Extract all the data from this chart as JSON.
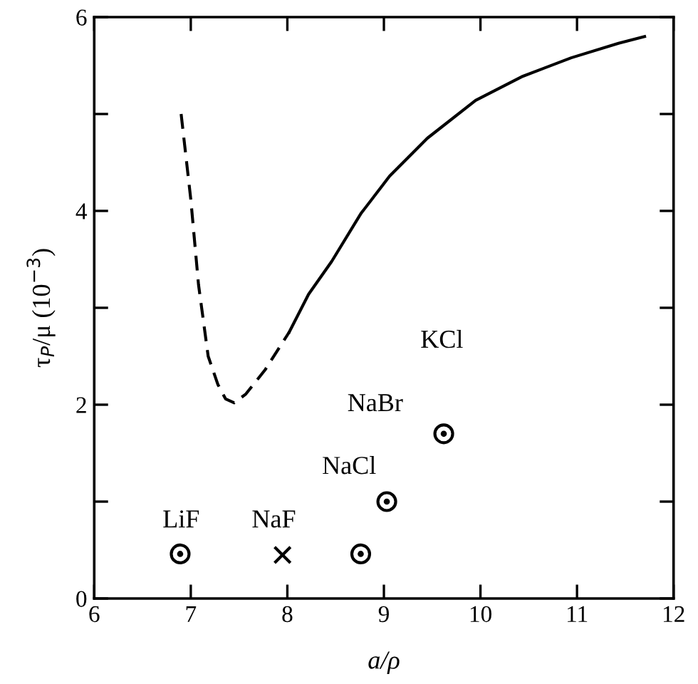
{
  "chart_data": {
    "type": "line",
    "xlabel": "a/ρ",
    "ylabel": "τ$_{P}$/μ (10$^{−3}$)",
    "xlim": [
      6,
      12
    ],
    "ylim": [
      0,
      6
    ],
    "xticks": [
      6,
      7,
      8,
      9,
      10,
      11,
      12
    ],
    "yticks": [
      0,
      {
        "value": 1,
        "label": null
      },
      2,
      {
        "value": 3,
        "label": null
      },
      4,
      {
        "value": 5,
        "label": null
      },
      6
    ],
    "grid": false,
    "series": [
      {
        "type": "line",
        "line_style": "dashed",
        "color": "#000000",
        "x": [
          6.9,
          7.0,
          7.08,
          7.18,
          7.28,
          7.36,
          7.45,
          7.57,
          7.77,
          8.02
        ],
        "values": [
          5.0,
          4.12,
          3.24,
          2.5,
          2.21,
          2.06,
          2.02,
          2.11,
          2.36,
          2.75
        ]
      },
      {
        "type": "line",
        "line_style": "solid",
        "color": "#000000",
        "x": [
          8.02,
          8.22,
          8.46,
          8.76,
          9.06,
          9.45,
          9.95,
          10.44,
          10.94,
          11.43,
          11.7
        ],
        "values": [
          2.75,
          3.14,
          3.48,
          3.97,
          4.36,
          4.75,
          5.14,
          5.39,
          5.58,
          5.73,
          5.8
        ]
      },
      {
        "type": "scatter",
        "marker": "circle",
        "color": "#000000",
        "x": [
          6.89,
          8.76,
          9.03,
          9.62
        ],
        "values": [
          0.46,
          0.46,
          1.0,
          1.7
        ]
      },
      {
        "type": "scatter",
        "marker": "cross",
        "color": "#000000",
        "x": [
          7.95
        ],
        "values": [
          0.45
        ]
      }
    ],
    "annotations": [
      "LiF",
      "NaF",
      "NaCl",
      "NaBr",
      "KCl"
    ]
  }
}
